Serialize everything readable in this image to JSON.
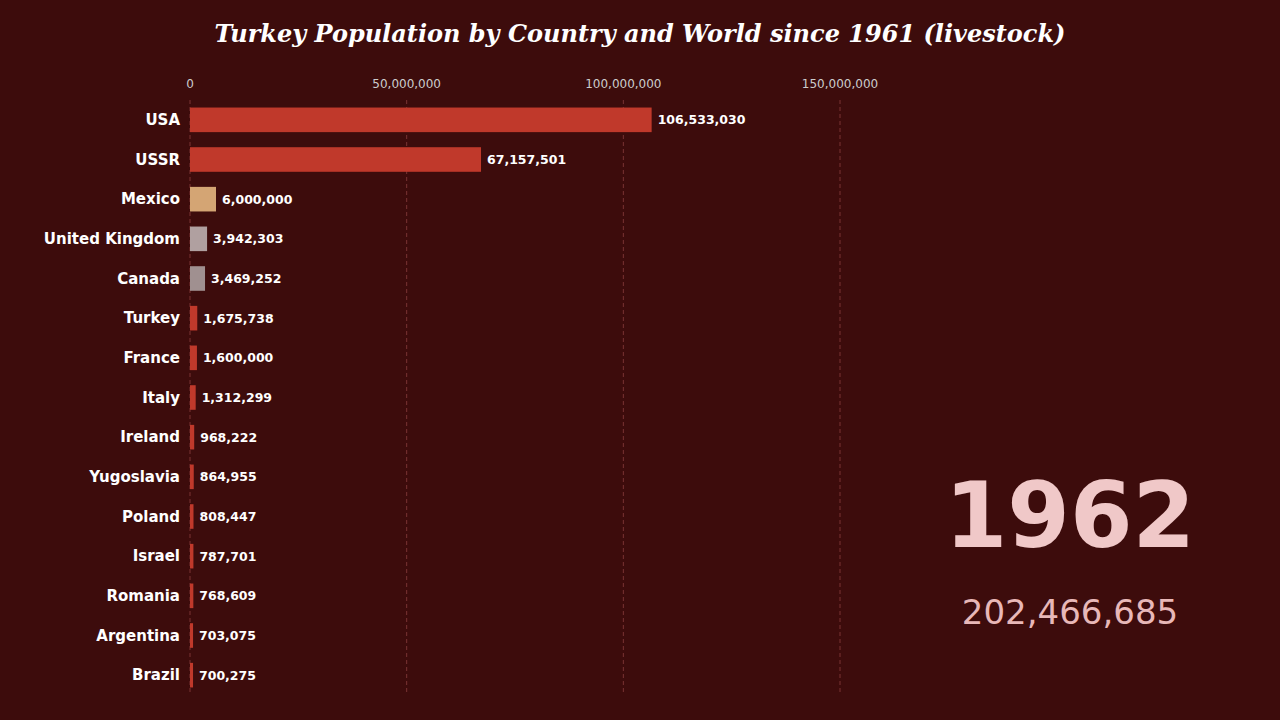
{
  "chart_data": {
    "type": "bar",
    "orientation": "horizontal",
    "title": "Turkey Population by Country and World since 1961 (livestock)",
    "annotations": [
      "1962",
      "202,466,685"
    ],
    "categories": [
      "USA",
      "USSR",
      "Mexico",
      "United Kingdom",
      "Canada",
      "Turkey",
      "France",
      "Italy",
      "Ireland",
      "Yugoslavia",
      "Poland",
      "Israel",
      "Romania",
      "Argentina",
      "Brazil"
    ],
    "values": [
      106533030,
      67157501,
      6000000,
      3942303,
      3469252,
      1675738,
      1600000,
      1312299,
      968222,
      864955,
      808447,
      787701,
      768609,
      703075,
      700275
    ],
    "value_labels": [
      "106,533,030",
      "67,157,501",
      "6,000,000",
      "3,942,303",
      "3,469,252",
      "1,675,738",
      "1,600,000",
      "1,312,299",
      "968,222",
      "864,955",
      "808,447",
      "787,701",
      "768,609",
      "703,075",
      "700,275"
    ],
    "colors": [
      "#c0392b",
      "#c0392b",
      "#d4a574",
      "#b0a0a0",
      "#a09090",
      "#c0392b",
      "#c0392b",
      "#c0392b",
      "#c0392b",
      "#c0392b",
      "#c0392b",
      "#c0392b",
      "#c0392b",
      "#c0392b",
      "#c0392b"
    ],
    "xlim": [
      0,
      150000000
    ],
    "xticks": [
      0,
      {
        "value": 50000000,
        "label": "50,000,000"
      },
      {
        "value": 100000000,
        "label": "100,000,000"
      },
      {
        "value": 150000000,
        "label": "150,000,000"
      }
    ],
    "grid": true,
    "data_labels": true
  }
}
